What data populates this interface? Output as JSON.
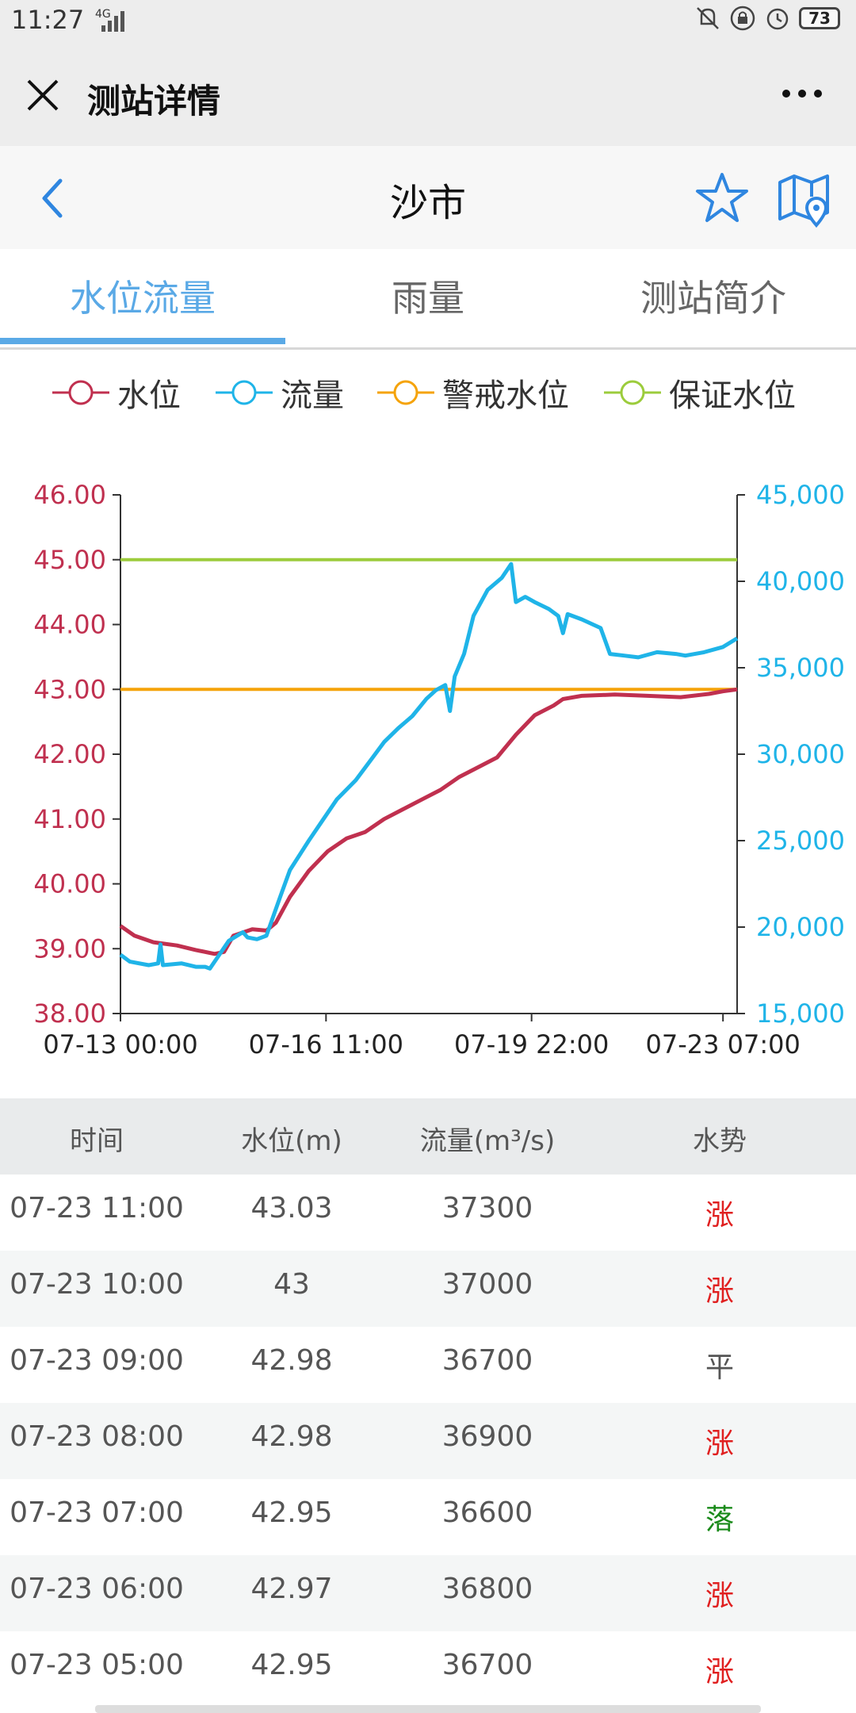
{
  "status_bar": {
    "time": "11:27",
    "network": "4G",
    "battery": "73"
  },
  "wechat_bar": {
    "title": "测站详情"
  },
  "header": {
    "station_name": "沙市"
  },
  "tabs": [
    {
      "label": "水位流量",
      "active": true
    },
    {
      "label": "雨量",
      "active": false
    },
    {
      "label": "测站简介",
      "active": false
    }
  ],
  "legend": [
    {
      "label": "水位",
      "color": "#c0304f"
    },
    {
      "label": "流量",
      "color": "#1fb4e8"
    },
    {
      "label": "警戒水位",
      "color": "#f5a30a"
    },
    {
      "label": "保证水位",
      "color": "#9ccc3c"
    }
  ],
  "chart_data": {
    "type": "line",
    "x_labels": [
      "07-13 00:00",
      "07-16 11:00",
      "07-19 22:00",
      "07-23 07:00"
    ],
    "y_left": {
      "ticks": [
        "46.00",
        "45.00",
        "44.00",
        "43.00",
        "42.00",
        "41.00",
        "40.00",
        "39.00",
        "38.00"
      ],
      "range": [
        38,
        46
      ],
      "color": "#c0304f"
    },
    "y_right": {
      "ticks": [
        "45,000",
        "40,000",
        "35,000",
        "30,000",
        "25,000",
        "20,000",
        "15,000"
      ],
      "range": [
        15000,
        45000
      ],
      "color": "#1fb4e8"
    },
    "warning_level": 43.0,
    "guarantee_level": 45.0,
    "series": [
      {
        "name": "水位",
        "axis": "left",
        "color": "#c0304f",
        "points": [
          [
            0,
            39.35
          ],
          [
            6,
            39.2
          ],
          [
            14,
            39.1
          ],
          [
            24,
            39.05
          ],
          [
            32,
            38.98
          ],
          [
            40,
            38.92
          ],
          [
            44,
            38.95
          ],
          [
            48,
            39.2
          ],
          [
            56,
            39.3
          ],
          [
            62,
            39.28
          ],
          [
            66,
            39.4
          ],
          [
            72,
            39.8
          ],
          [
            80,
            40.2
          ],
          [
            88,
            40.5
          ],
          [
            96,
            40.7
          ],
          [
            104,
            40.8
          ],
          [
            112,
            41.0
          ],
          [
            120,
            41.15
          ],
          [
            128,
            41.3
          ],
          [
            136,
            41.45
          ],
          [
            144,
            41.65
          ],
          [
            152,
            41.8
          ],
          [
            160,
            41.95
          ],
          [
            168,
            42.3
          ],
          [
            176,
            42.6
          ],
          [
            184,
            42.75
          ],
          [
            188,
            42.85
          ],
          [
            196,
            42.9
          ],
          [
            210,
            42.92
          ],
          [
            224,
            42.9
          ],
          [
            238,
            42.88
          ],
          [
            250,
            42.93
          ],
          [
            256,
            42.97
          ],
          [
            262,
            43.0
          ]
        ]
      },
      {
        "name": "流量",
        "axis": "right",
        "color": "#1fb4e8",
        "points": [
          [
            0,
            18400
          ],
          [
            4,
            18000
          ],
          [
            12,
            17800
          ],
          [
            16,
            17900
          ],
          [
            17,
            19000
          ],
          [
            18,
            17800
          ],
          [
            26,
            17900
          ],
          [
            32,
            17700
          ],
          [
            36,
            17700
          ],
          [
            38,
            17600
          ],
          [
            42,
            18400
          ],
          [
            46,
            19200
          ],
          [
            52,
            19700
          ],
          [
            54,
            19400
          ],
          [
            58,
            19300
          ],
          [
            62,
            19500
          ],
          [
            68,
            21800
          ],
          [
            72,
            23300
          ],
          [
            80,
            25000
          ],
          [
            86,
            26200
          ],
          [
            92,
            27400
          ],
          [
            100,
            28500
          ],
          [
            106,
            29600
          ],
          [
            112,
            30700
          ],
          [
            118,
            31500
          ],
          [
            124,
            32200
          ],
          [
            130,
            33200
          ],
          [
            134,
            33700
          ],
          [
            138,
            34000
          ],
          [
            140,
            32500
          ],
          [
            142,
            34500
          ],
          [
            146,
            35800
          ],
          [
            150,
            38000
          ],
          [
            156,
            39500
          ],
          [
            162,
            40200
          ],
          [
            166,
            41000
          ],
          [
            168,
            38800
          ],
          [
            172,
            39100
          ],
          [
            176,
            38800
          ],
          [
            182,
            38400
          ],
          [
            186,
            38000
          ],
          [
            188,
            37000
          ],
          [
            190,
            38100
          ],
          [
            196,
            37800
          ],
          [
            204,
            37300
          ],
          [
            208,
            35800
          ],
          [
            214,
            35700
          ],
          [
            220,
            35600
          ],
          [
            228,
            35900
          ],
          [
            236,
            35800
          ],
          [
            240,
            35700
          ],
          [
            248,
            35900
          ],
          [
            256,
            36200
          ],
          [
            262,
            36700
          ]
        ]
      }
    ]
  },
  "table": {
    "headers": [
      "时间",
      "水位(m)",
      "流量(m³/s)",
      "水势"
    ],
    "rows": [
      {
        "time": "07-23 11:00",
        "level": "43.03",
        "flow": "37300",
        "trend": "涨",
        "trend_color": "#e02020"
      },
      {
        "time": "07-23 10:00",
        "level": "43",
        "flow": "37000",
        "trend": "涨",
        "trend_color": "#e02020"
      },
      {
        "time": "07-23 09:00",
        "level": "42.98",
        "flow": "36700",
        "trend": "平",
        "trend_color": "#555555"
      },
      {
        "time": "07-23 08:00",
        "level": "42.98",
        "flow": "36900",
        "trend": "涨",
        "trend_color": "#e02020"
      },
      {
        "time": "07-23 07:00",
        "level": "42.95",
        "flow": "36600",
        "trend": "落",
        "trend_color": "#1a8a1a"
      },
      {
        "time": "07-23 06:00",
        "level": "42.97",
        "flow": "36800",
        "trend": "涨",
        "trend_color": "#e02020"
      },
      {
        "time": "07-23 05:00",
        "level": "42.95",
        "flow": "36700",
        "trend": "涨",
        "trend_color": "#e02020"
      }
    ]
  }
}
